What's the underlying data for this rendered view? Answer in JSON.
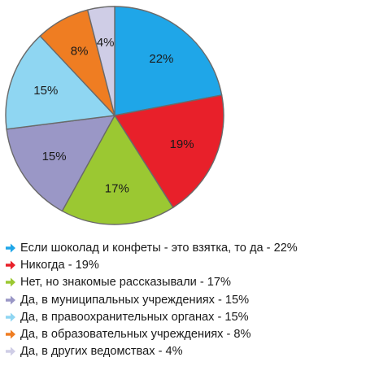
{
  "chart_data": {
    "type": "pie",
    "title": "",
    "legend_position": "bottom",
    "legend_marker": "arrow",
    "slices": [
      {
        "label": "Если шоколад и конфеты - это взятка, то да - 22%",
        "value": 22,
        "data_label": "22%",
        "color": "#1fa6e8"
      },
      {
        "label": "Никогда - 19%",
        "value": 19,
        "data_label": "19%",
        "color": "#e8202a"
      },
      {
        "label": "Нет, но знакомые рассказывали - 17%",
        "value": 17,
        "data_label": "17%",
        "color": "#9bc832"
      },
      {
        "label": "Да, в муниципальных учреждениях - 15%",
        "value": 15,
        "data_label": "15%",
        "color": "#9a97c6"
      },
      {
        "label": "Да, в правоохранительных органах - 15%",
        "value": 15,
        "data_label": "15%",
        "color": "#8fd6f2"
      },
      {
        "label": "Да, в образовательных учреждениях - 8%",
        "value": 8,
        "data_label": "8%",
        "color": "#ef7d22"
      },
      {
        "label": "Да, в других ведомствах - 4%",
        "value": 4,
        "data_label": "4%",
        "color": "#cfcde6"
      }
    ]
  }
}
